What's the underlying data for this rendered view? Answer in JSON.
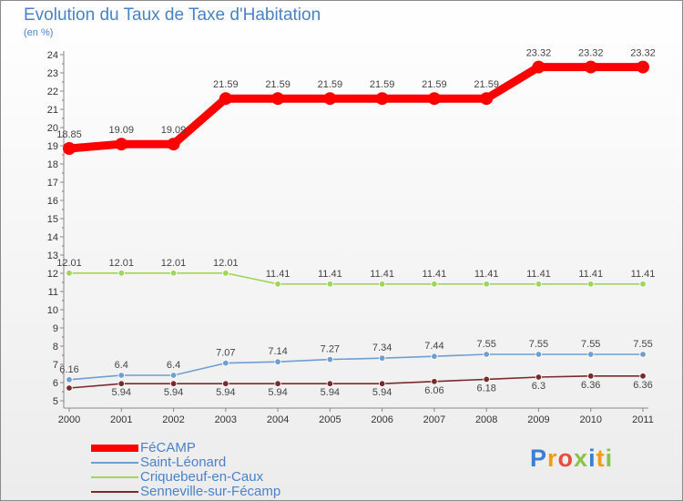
{
  "chart_data": {
    "type": "line",
    "title": "Evolution du Taux de Taxe d'Habitation",
    "ylabel": "(en %)",
    "xlabel": "",
    "categories": [
      "2000",
      "2001",
      "2002",
      "2003",
      "2004",
      "2005",
      "2006",
      "2007",
      "2008",
      "2009",
      "2010",
      "2011"
    ],
    "ylim": [
      5,
      24
    ],
    "yticks": [
      "5",
      "6",
      "7",
      "8",
      "9",
      "10",
      "11",
      "12",
      "13",
      "14",
      "15",
      "16",
      "17",
      "18",
      "19",
      "20",
      "21",
      "22",
      "23",
      "24"
    ],
    "series": [
      {
        "name": "FéCAMP",
        "color": "#ff0000",
        "labels_below": false,
        "values": [
          18.85,
          19.09,
          19.09,
          21.59,
          21.59,
          21.59,
          21.59,
          21.59,
          21.59,
          23.32,
          23.32,
          23.32
        ],
        "labels": [
          "18.85",
          "19.09",
          "19.09",
          "21.59",
          "21.59",
          "21.59",
          "21.59",
          "21.59",
          "21.59",
          "23.32",
          "23.32",
          "23.32"
        ]
      },
      {
        "name": "Saint-Léonard",
        "color": "#6e9fd0",
        "labels_below": false,
        "values": [
          6.16,
          6.4,
          6.4,
          7.07,
          7.14,
          7.27,
          7.34,
          7.44,
          7.55,
          7.55,
          7.55,
          7.55
        ],
        "labels": [
          "6.16",
          "6.4",
          "6.4",
          "7.07",
          "7.14",
          "7.27",
          "7.34",
          "7.44",
          "7.55",
          "7.55",
          "7.55",
          "7.55"
        ]
      },
      {
        "name": "Criquebeuf-en-Caux",
        "color": "#9ed65c",
        "labels_below": false,
        "values": [
          12.01,
          12.01,
          12.01,
          12.01,
          11.41,
          11.41,
          11.41,
          11.41,
          11.41,
          11.41,
          11.41,
          11.41
        ],
        "labels": [
          "12.01",
          "12.01",
          "12.01",
          "12.01",
          "11.41",
          "11.41",
          "11.41",
          "11.41",
          "11.41",
          "11.41",
          "11.41",
          "11.41"
        ]
      },
      {
        "name": "Senneville-sur-Fécamp",
        "color": "#7a2a2a",
        "labels_below": true,
        "values": [
          5.7,
          5.94,
          5.94,
          5.94,
          5.94,
          5.94,
          5.94,
          6.06,
          6.18,
          6.3,
          6.36,
          6.36
        ],
        "labels": [
          "",
          "5.94",
          "5.94",
          "5.94",
          "5.94",
          "5.94",
          "5.94",
          "6.06",
          "6.18",
          "6.3",
          "6.36",
          "6.36"
        ]
      }
    ]
  },
  "logo": {
    "letters": [
      "P",
      "r",
      "o",
      "x",
      "i",
      "t",
      "i"
    ],
    "colors": [
      "#3b7fd4",
      "#f39c12",
      "#e74c3c",
      "#8bc34a",
      "#3b7fd4",
      "#f39c12",
      "#8bc34a"
    ]
  }
}
